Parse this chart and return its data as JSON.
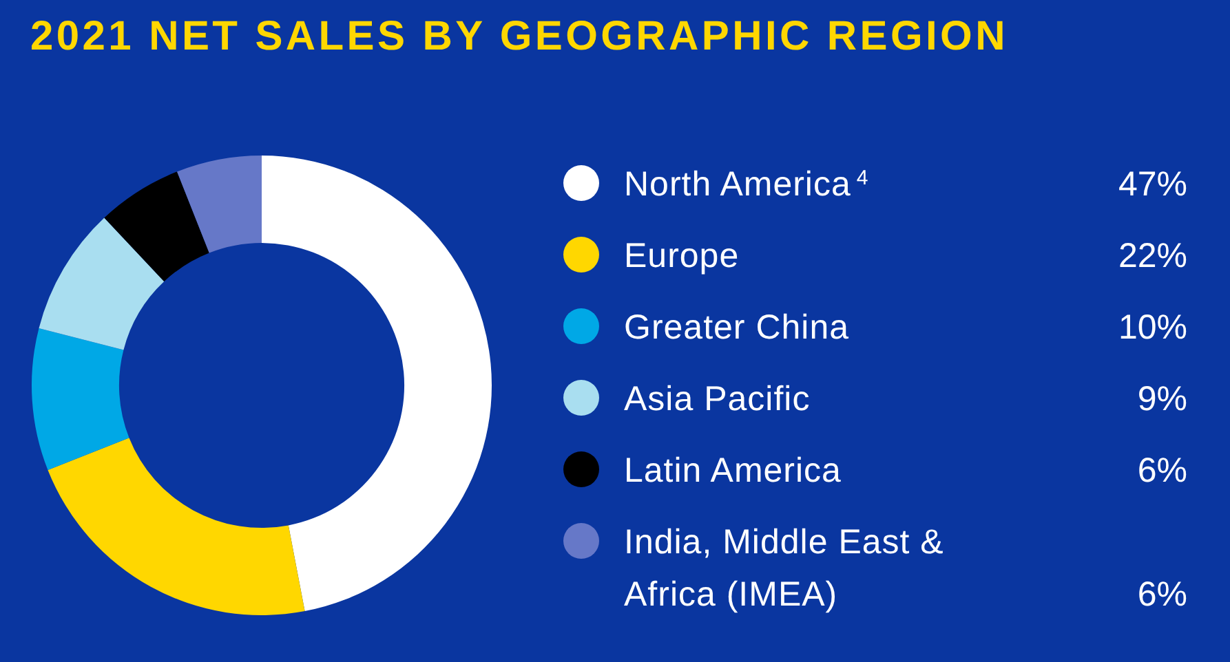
{
  "chart_data": {
    "type": "donut",
    "title": "2021 NET SALES BY GEOGRAPHIC REGION",
    "categories": [
      "North America$^{4}$",
      "Europe",
      "Greater China",
      "Asia Pacific",
      "Latin America",
      "India, Middle East & Africa (IMEA)"
    ],
    "values": [
      47,
      22,
      10,
      9,
      6,
      6
    ],
    "colors": [
      "#ffffff",
      "#ffd700",
      "#00a8e6",
      "#a9def0",
      "#000000",
      "#6678c8"
    ],
    "value_labels": [
      "47%",
      "22%",
      "10%",
      "9%",
      "6%",
      "6%"
    ],
    "legend": "right"
  }
}
